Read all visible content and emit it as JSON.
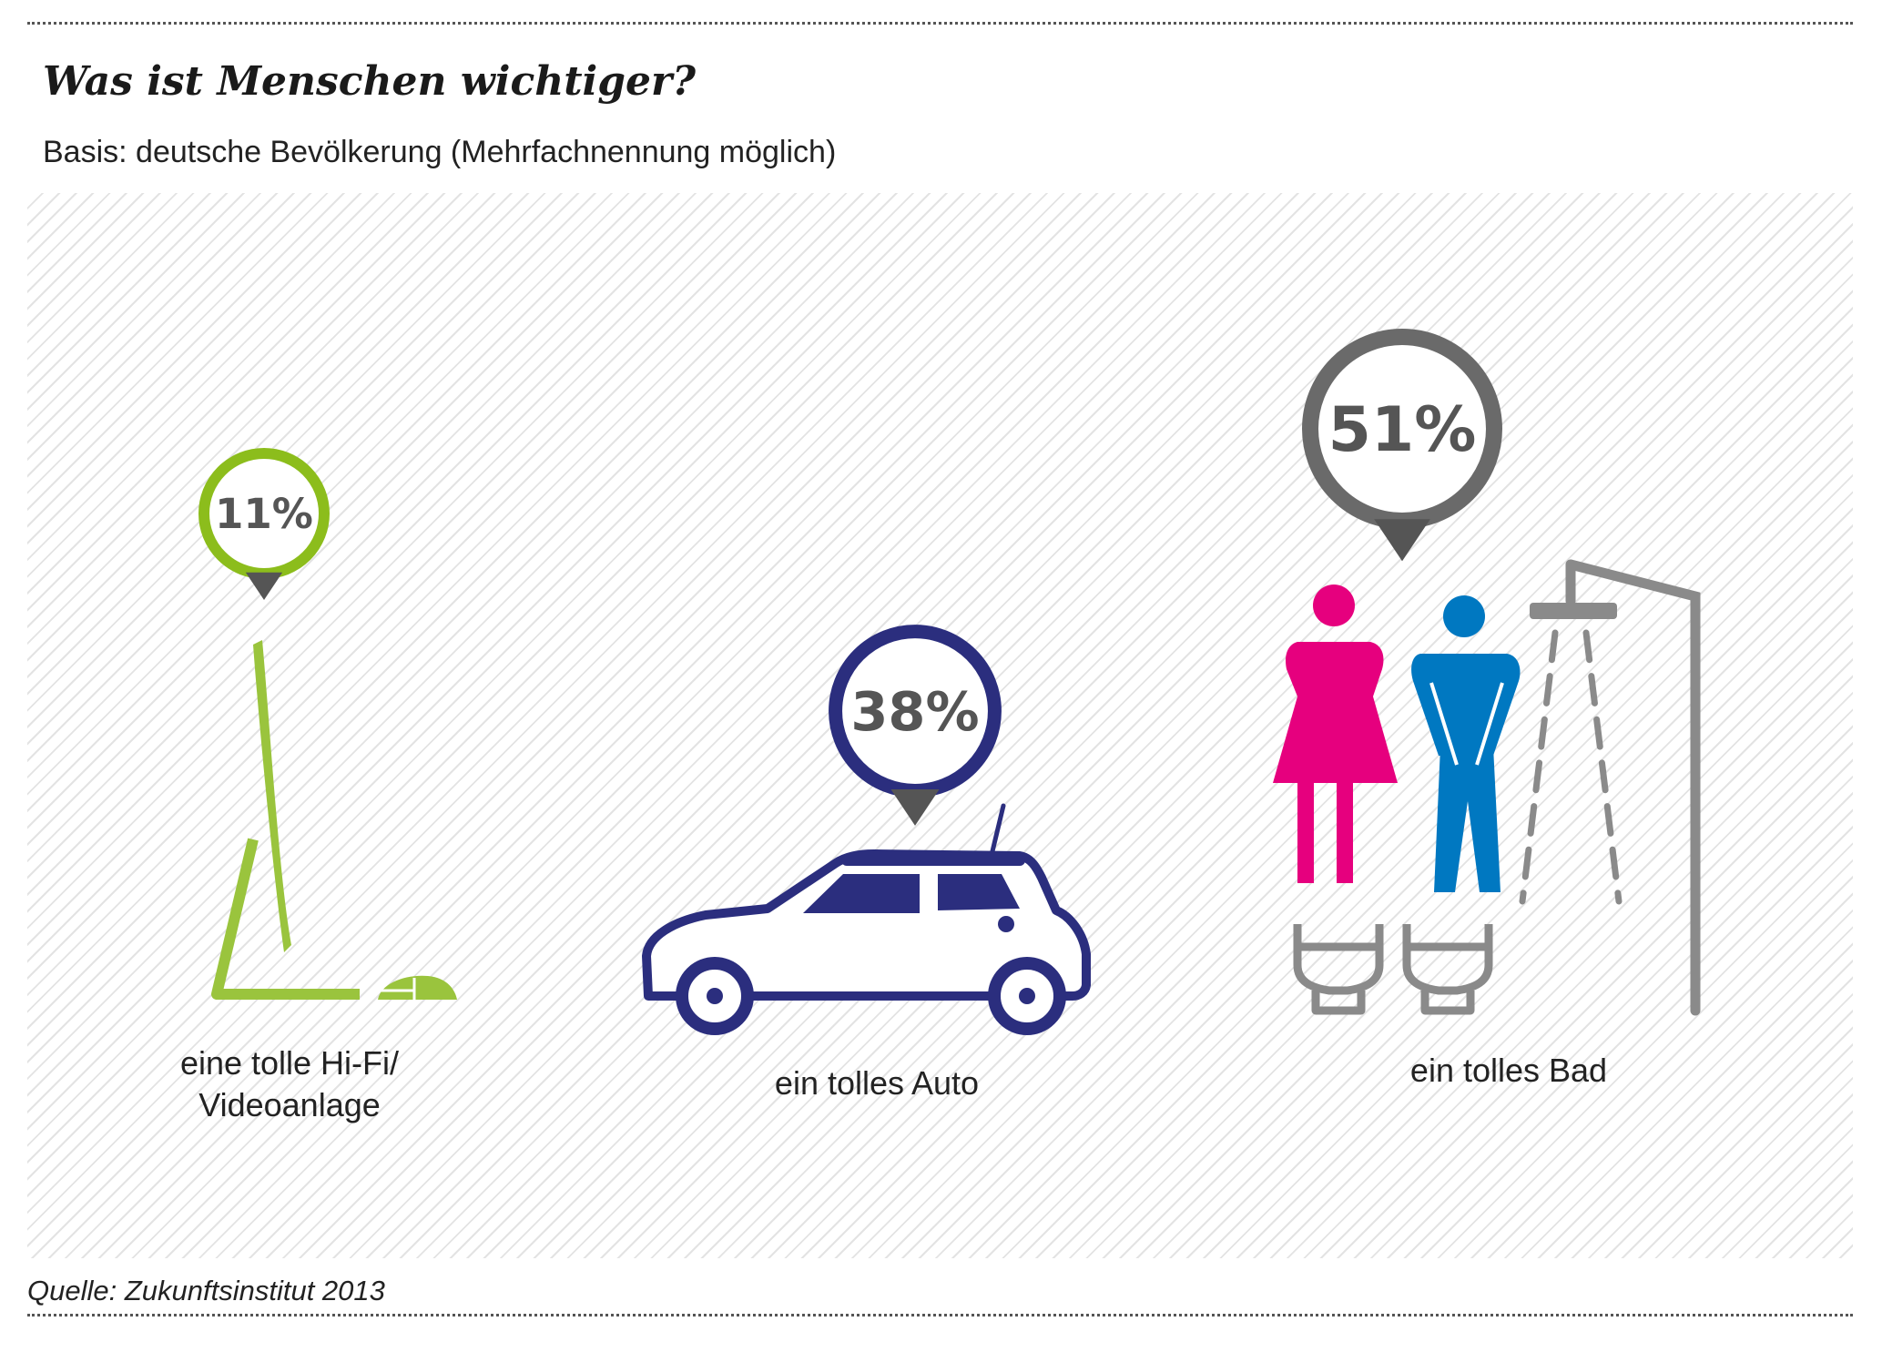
{
  "title": "Was ist Menschen wichtiger?",
  "subtitle": "Basis: deutsche Bevölkerung (Mehrfachnennung möglich)",
  "source": "Quelle: Zukunftsinstitut 2013",
  "chart_data": {
    "type": "bubble",
    "title": "Was ist Menschen wichtiger?",
    "subtitle": "Basis: deutsche Bevölkerung (Mehrfachnennung möglich)",
    "unit": "%",
    "categories": [
      {
        "label_lines": [
          "eine tolle Hi-Fi/",
          "Videoanlage"
        ],
        "value": 11,
        "value_label": "11%",
        "color": "#8cbd1c",
        "icon": "computer-monitor-icon"
      },
      {
        "label_lines": [
          "ein tolles Auto"
        ],
        "value": 38,
        "value_label": "38%",
        "color": "#2b2e7e",
        "icon": "car-icon"
      },
      {
        "label_lines": [
          "ein tolles Bad"
        ],
        "value": 51,
        "value_label": "51%",
        "color": "#6a6a6a",
        "icon": "bathroom-icon"
      }
    ],
    "colors": {
      "pointer": "#555555",
      "value_text": "#555555",
      "woman": "#e6007e",
      "man": "#0078c1",
      "fixture": "#8a8a8a",
      "monitor": "#9ac43d"
    }
  }
}
